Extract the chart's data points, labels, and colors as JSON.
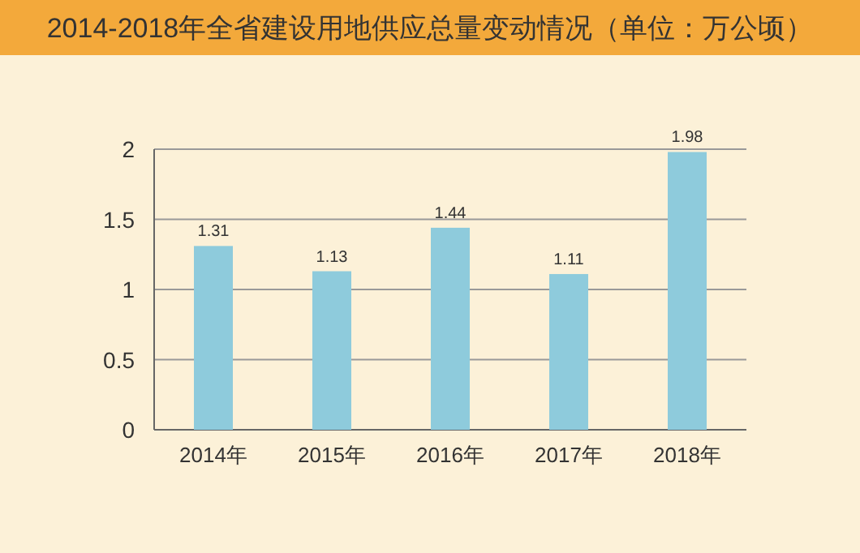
{
  "chart_data": {
    "type": "bar",
    "title": "2014-2018年全省建设用地供应总量变动情况（单位：万公顷）",
    "categories": [
      "2014年",
      "2015年",
      "2016年",
      "2017年",
      "2018年"
    ],
    "values": [
      1.31,
      1.13,
      1.44,
      1.11,
      1.98
    ],
    "color": "#8ecbdc",
    "ylim": [
      0,
      2
    ],
    "yticks": [
      0,
      0.5,
      1,
      1.5,
      2
    ],
    "grid": "y",
    "data_labels": true
  }
}
